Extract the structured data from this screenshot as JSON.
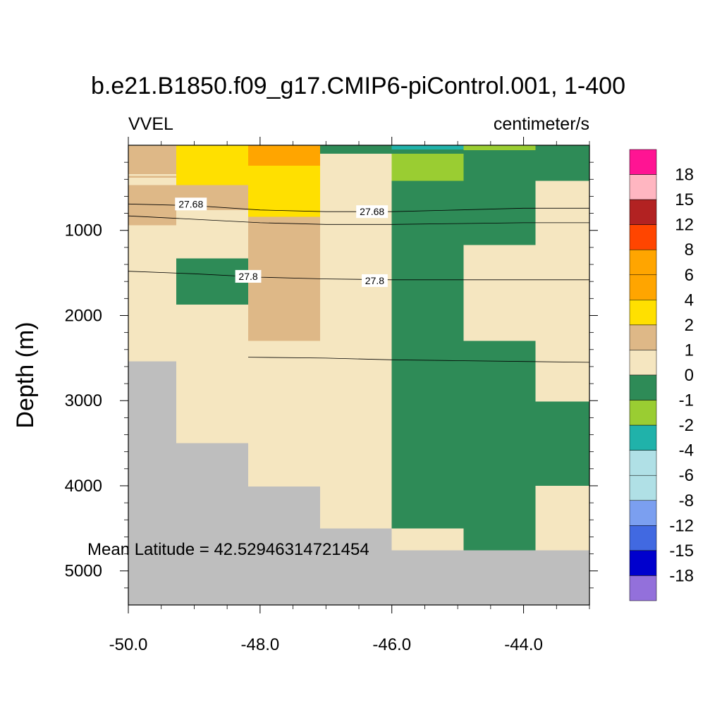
{
  "chart_data": {
    "type": "heatmap",
    "title": "b.e21.B1850.f09_g17.CMIP6-piControl.001, 1-400",
    "left_label": "VVEL",
    "right_label": "centimeter/s",
    "ylabel": "Depth (m)",
    "xlabel": "",
    "xlim": [
      -50.0,
      -43.0
    ],
    "ylim": [
      5400,
      0
    ],
    "x_ticks": [
      -50.0,
      -48.0,
      -46.0,
      -44.0
    ],
    "x_tick_labels": [
      "-50.0",
      "-48.0",
      "-46.0",
      "-44.0"
    ],
    "y_ticks": [
      1000,
      2000,
      3000,
      4000,
      5000
    ],
    "y_tick_labels": [
      "1000",
      "2000",
      "3000",
      "4000",
      "5000"
    ],
    "annotation": "Mean Latitude = 42.52946314721454",
    "land_color": "#bebebe",
    "colorbar": {
      "labels": [
        "18",
        "15",
        "12",
        "8",
        "6",
        "4",
        "2",
        "1",
        "0",
        "-1",
        "-2",
        "-4",
        "-6",
        "-8",
        "-12",
        "-15",
        "-18"
      ],
      "colors": [
        "#ff1493",
        "#ffb6c1",
        "#b22222",
        "#ff4500",
        "#ffa500",
        "#ffa500",
        "#ffe000",
        "#deb887",
        "#f5e6c0",
        "#2e8b57",
        "#9acd32",
        "#20b2aa",
        "#b0e0e6",
        "#b0e0e6",
        "#7b9ff0",
        "#4169e1",
        "#0000cd",
        "#9370db"
      ]
    },
    "cells": [
      {
        "x": [
          -50.0,
          -49.27
        ],
        "y": [
          0,
          40
        ],
        "value": 1
      },
      {
        "x": [
          -50.0,
          -49.27
        ],
        "y": [
          40,
          340
        ],
        "value": 1
      },
      {
        "x": [
          -50.0,
          -49.27
        ],
        "y": [
          340,
          360
        ],
        "value": 0
      },
      {
        "x": [
          -50.0,
          -49.27
        ],
        "y": [
          360,
          380
        ],
        "value": 1
      },
      {
        "x": [
          -50.0,
          -49.27
        ],
        "y": [
          380,
          470
        ],
        "value": 0
      },
      {
        "x": [
          -50.0,
          -49.27
        ],
        "y": [
          470,
          940
        ],
        "value": 1
      },
      {
        "x": [
          -50.0,
          -49.27
        ],
        "y": [
          940,
          2540
        ],
        "value": 0
      },
      {
        "x": [
          -50.0,
          -49.27
        ],
        "y": [
          2540,
          5400
        ],
        "value": "land"
      },
      {
        "x": [
          -49.27,
          -48.18
        ],
        "y": [
          0,
          470
        ],
        "value": 2
      },
      {
        "x": [
          -49.27,
          -48.18
        ],
        "y": [
          470,
          760
        ],
        "value": 1
      },
      {
        "x": [
          -49.27,
          -48.18
        ],
        "y": [
          760,
          1330
        ],
        "value": 0
      },
      {
        "x": [
          -49.27,
          -48.18
        ],
        "y": [
          1330,
          1870
        ],
        "value": -1
      },
      {
        "x": [
          -49.27,
          -48.18
        ],
        "y": [
          1870,
          3500
        ],
        "value": 0
      },
      {
        "x": [
          -49.27,
          -48.18
        ],
        "y": [
          3500,
          5400
        ],
        "value": "land"
      },
      {
        "x": [
          -48.18,
          -47.09
        ],
        "y": [
          0,
          40
        ],
        "value": 6
      },
      {
        "x": [
          -48.18,
          -47.09
        ],
        "y": [
          40,
          240
        ],
        "value": 6
      },
      {
        "x": [
          -48.18,
          -47.09
        ],
        "y": [
          240,
          840
        ],
        "value": 2
      },
      {
        "x": [
          -48.18,
          -47.09
        ],
        "y": [
          840,
          2300
        ],
        "value": 1
      },
      {
        "x": [
          -48.18,
          -47.09
        ],
        "y": [
          2300,
          4010
        ],
        "value": 0
      },
      {
        "x": [
          -48.18,
          -47.09
        ],
        "y": [
          4010,
          5400
        ],
        "value": "land"
      },
      {
        "x": [
          -47.09,
          -46.0
        ],
        "y": [
          0,
          100
        ],
        "value": -1
      },
      {
        "x": [
          -47.09,
          -46.0
        ],
        "y": [
          100,
          4500
        ],
        "value": 0
      },
      {
        "x": [
          -47.09,
          -46.0
        ],
        "y": [
          4500,
          5400
        ],
        "value": "land"
      },
      {
        "x": [
          -46.0,
          -44.91
        ],
        "y": [
          0,
          50
        ],
        "value": -2.5
      },
      {
        "x": [
          -46.0,
          -44.91
        ],
        "y": [
          50,
          100
        ],
        "value": -1
      },
      {
        "x": [
          -46.0,
          -44.91
        ],
        "y": [
          100,
          420
        ],
        "value": -1.5
      },
      {
        "x": [
          -46.0,
          -44.91
        ],
        "y": [
          420,
          4500
        ],
        "value": -1
      },
      {
        "x": [
          -46.0,
          -44.91
        ],
        "y": [
          4500,
          4760
        ],
        "value": 0
      },
      {
        "x": [
          -46.0,
          -44.91
        ],
        "y": [
          4760,
          5400
        ],
        "value": "land"
      },
      {
        "x": [
          -44.91,
          -43.82
        ],
        "y": [
          0,
          60
        ],
        "value": -1.5
      },
      {
        "x": [
          -44.91,
          -43.82
        ],
        "y": [
          60,
          1170
        ],
        "value": -1
      },
      {
        "x": [
          -44.91,
          -43.82
        ],
        "y": [
          1170,
          2300
        ],
        "value": 0
      },
      {
        "x": [
          -44.91,
          -43.82
        ],
        "y": [
          2300,
          4760
        ],
        "value": -1
      },
      {
        "x": [
          -44.91,
          -43.82
        ],
        "y": [
          4760,
          5400
        ],
        "value": "land"
      },
      {
        "x": [
          -43.82,
          -43.0
        ],
        "y": [
          0,
          420
        ],
        "value": -1
      },
      {
        "x": [
          -43.82,
          -43.0
        ],
        "y": [
          420,
          3010
        ],
        "value": 0
      },
      {
        "x": [
          -43.82,
          -43.0
        ],
        "y": [
          3010,
          4000
        ],
        "value": -1
      },
      {
        "x": [
          -43.82,
          -43.0
        ],
        "y": [
          4000,
          4760
        ],
        "value": 0
      },
      {
        "x": [
          -43.82,
          -43.0
        ],
        "y": [
          4760,
          5400
        ],
        "value": "land"
      }
    ],
    "contours": [
      {
        "level": 27.68,
        "x": [
          -50.0,
          -49.0,
          -48.0,
          -47.0,
          -46.0,
          -45.0,
          -44.0,
          -43.0
        ],
        "y": [
          690,
          710,
          760,
          780,
          780,
          760,
          740,
          740
        ]
      },
      {
        "level": 27.7,
        "x": [
          -50.0,
          -49.0,
          -48.0,
          -47.0,
          -46.0,
          -45.0,
          -44.0,
          -43.0
        ],
        "y": [
          830,
          870,
          910,
          930,
          930,
          920,
          910,
          910
        ]
      },
      {
        "level": 27.8,
        "x": [
          -50.0,
          -49.0,
          -48.0,
          -47.0,
          -46.0,
          -45.0,
          -44.0,
          -43.0
        ],
        "y": [
          1480,
          1510,
          1550,
          1570,
          1580,
          1580,
          1580,
          1580
        ]
      },
      {
        "level": 27.85,
        "x": [
          -48.18,
          -47.0,
          -46.0,
          -45.0,
          -44.0,
          -43.0
        ],
        "y": [
          2490,
          2500,
          2520,
          2530,
          2540,
          2550
        ]
      }
    ],
    "contour_labels": [
      {
        "text": "27.68",
        "x": -49.05,
        "y": 690
      },
      {
        "text": "27.68",
        "x": -46.3,
        "y": 780
      },
      {
        "text": "27.8",
        "x": -48.18,
        "y": 1540
      },
      {
        "text": "27.8",
        "x": -46.26,
        "y": 1590
      }
    ]
  }
}
